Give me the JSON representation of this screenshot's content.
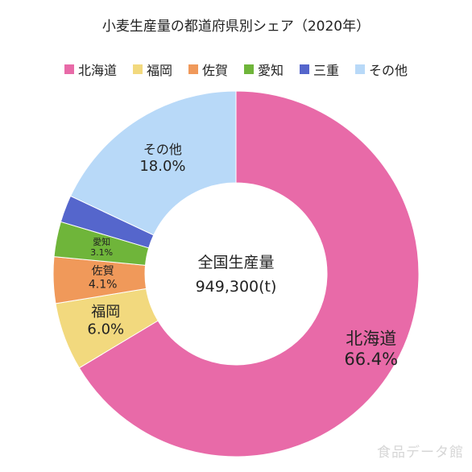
{
  "chart_data": {
    "type": "pie",
    "title": "小麦生産量の都道府県別シェア（2020年）",
    "center_label": "全国生産量",
    "center_value": "949,300(t)",
    "slices": [
      {
        "name": "北海道",
        "value": 66.4,
        "label": "66.4%",
        "color": "#e86aa8"
      },
      {
        "name": "福岡",
        "value": 6.0,
        "label": "6.0%",
        "color": "#f2d97e"
      },
      {
        "name": "佐賀",
        "value": 4.1,
        "label": "4.1%",
        "color": "#f0995a"
      },
      {
        "name": "愛知",
        "value": 3.1,
        "label": "3.1%",
        "color": "#6fb53a"
      },
      {
        "name": "三重",
        "value": 2.4,
        "label": "",
        "color": "#5566cc"
      },
      {
        "name": "その他",
        "value": 18.0,
        "label": "18.0%",
        "color": "#b8d9f8"
      }
    ],
    "legend_position": "top"
  },
  "watermark": "食品データ館"
}
